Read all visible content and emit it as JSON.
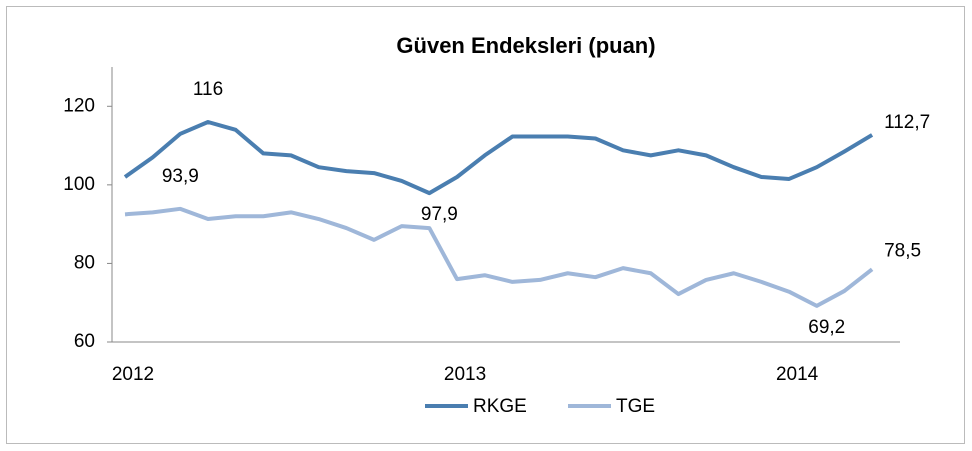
{
  "chart_data": {
    "type": "line",
    "title": "Güven Endeksleri (puan)",
    "categories": [
      "2012",
      null,
      null,
      null,
      null,
      null,
      null,
      null,
      null,
      null,
      null,
      null,
      "2013",
      null,
      null,
      null,
      null,
      null,
      null,
      null,
      null,
      null,
      null,
      null,
      "2014",
      null,
      null,
      null
    ],
    "series": [
      {
        "name": "RKGE",
        "color": "#4a7eb0",
        "values": [
          102,
          107,
          113,
          116,
          114,
          108,
          107.5,
          104.5,
          103.5,
          103,
          101,
          97.9,
          102,
          107.5,
          112.3,
          112.3,
          112.3,
          111.8,
          108.8,
          107.5,
          108.8,
          107.5,
          104.5,
          102,
          101.5,
          104.5,
          108.5,
          112.7
        ],
        "value_labels": [
          null,
          null,
          null,
          "116",
          null,
          null,
          null,
          null,
          null,
          null,
          null,
          "97,9",
          null,
          null,
          null,
          null,
          null,
          null,
          null,
          null,
          null,
          null,
          null,
          null,
          null,
          null,
          null,
          "112,7"
        ]
      },
      {
        "name": "TGE",
        "color": "#9fb7d9",
        "values": [
          92.5,
          93,
          93.9,
          91.3,
          92,
          92,
          93,
          91.3,
          89,
          86,
          89.5,
          89,
          76,
          77,
          75.3,
          75.8,
          77.5,
          76.5,
          78.8,
          77.5,
          72.2,
          75.8,
          77.5,
          75.3,
          72.8,
          69.2,
          73,
          78.5
        ],
        "value_labels": [
          null,
          null,
          "93,9",
          null,
          null,
          null,
          null,
          null,
          null,
          null,
          null,
          null,
          null,
          null,
          null,
          null,
          null,
          null,
          null,
          null,
          null,
          null,
          null,
          null,
          null,
          "69,2",
          null,
          "78,5"
        ]
      }
    ],
    "ylim": [
      60,
      130
    ],
    "yticks": [
      60,
      80,
      100,
      120
    ],
    "grid": false,
    "legend": "bottom"
  }
}
